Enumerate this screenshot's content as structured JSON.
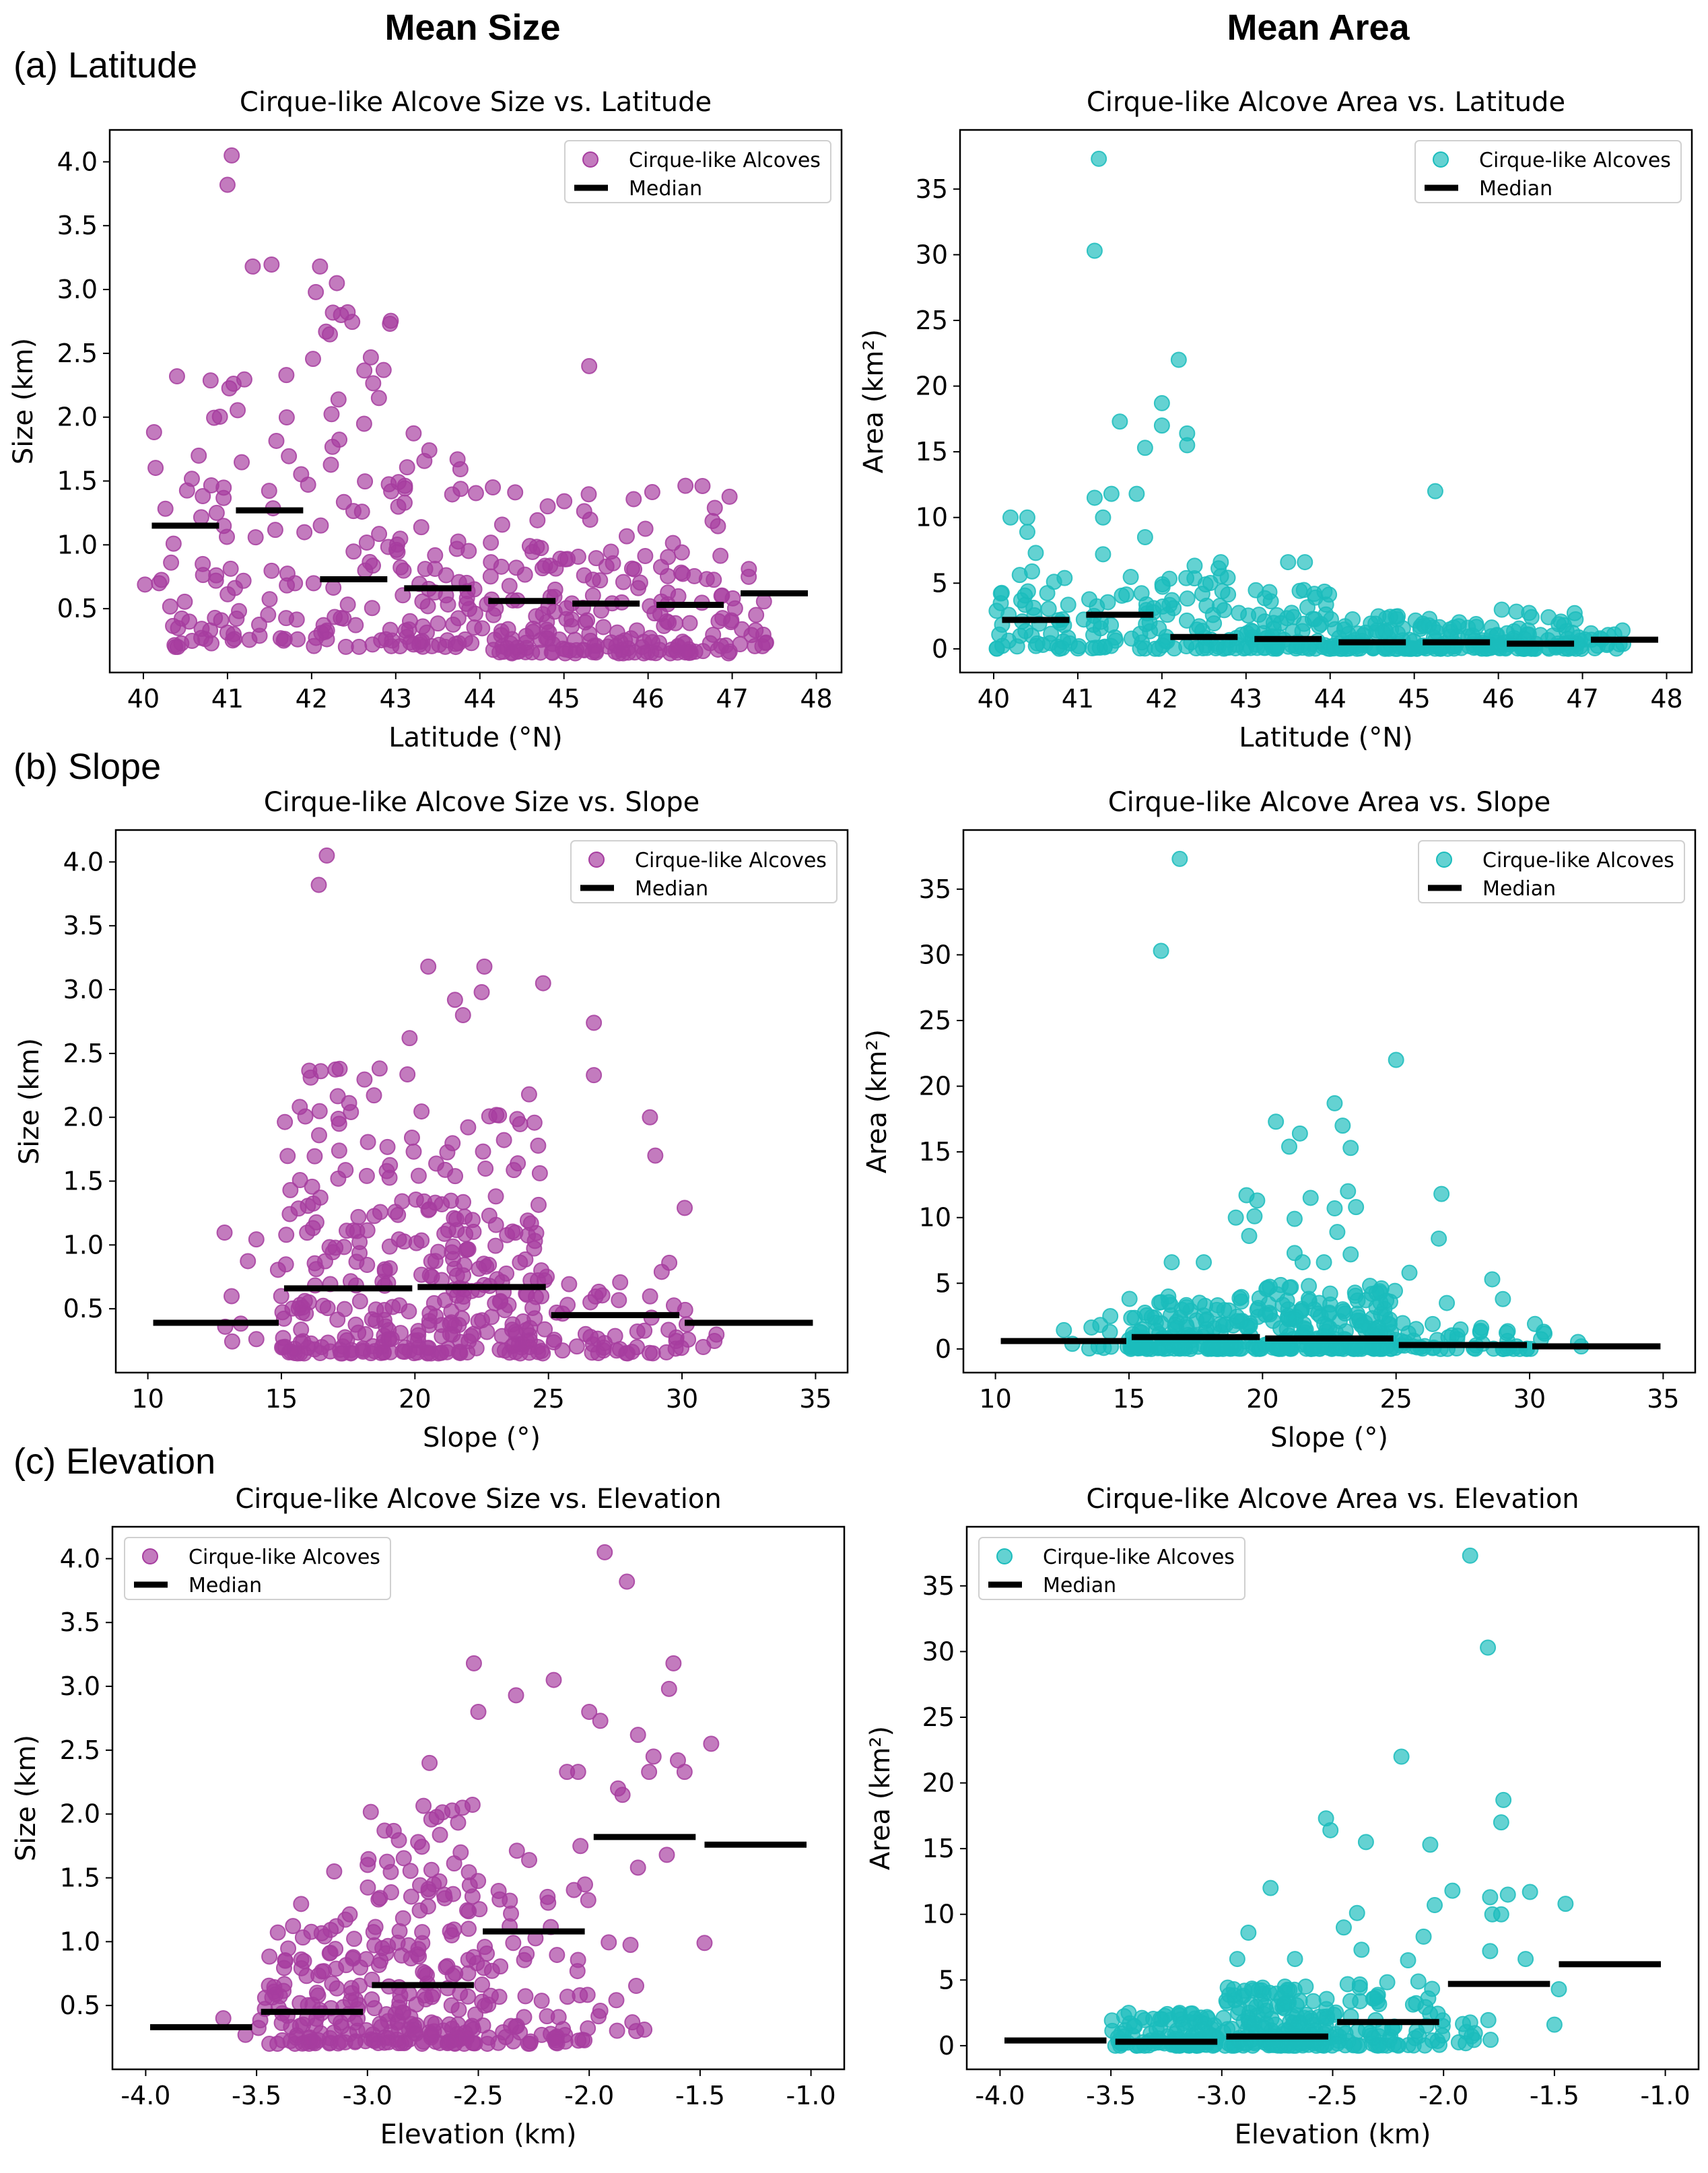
{
  "column_titles": [
    "Mean Size",
    "Mean Area"
  ],
  "row_labels": [
    "(a) Latitude",
    "(b) Slope",
    "(c) Elevation"
  ],
  "colors": {
    "size": "#a63d9f",
    "area": "#1bbcbc",
    "median": "#000000"
  },
  "legend": {
    "points": "Cirque-like Alcoves",
    "median": "Median"
  },
  "chart_data": [
    {
      "id": "size-lat",
      "type": "scatter",
      "title": "Cirque-like Alcove Size vs. Latitude",
      "xlabel": "Latitude (°N)",
      "ylabel": "Size (km)",
      "xlim": [
        39.6,
        48.3
      ],
      "ylim": [
        0.0,
        4.25
      ],
      "xticks": [
        40,
        41,
        42,
        43,
        44,
        45,
        46,
        47,
        48
      ],
      "xtick_labels": [
        "40",
        "41",
        "42",
        "43",
        "44",
        "45",
        "46",
        "47",
        "48"
      ],
      "yticks": [
        0.5,
        1.0,
        1.5,
        2.0,
        2.5,
        3.0,
        3.5,
        4.0
      ],
      "ytick_labels": [
        "0.5",
        "1.0",
        "1.5",
        "2.0",
        "2.5",
        "3.0",
        "3.5",
        "4.0"
      ],
      "legend_position": "top-right",
      "color_key": "size",
      "medians": [
        [
          40.1,
          40.9,
          1.15
        ],
        [
          41.1,
          41.9,
          1.27
        ],
        [
          42.1,
          42.9,
          0.73
        ],
        [
          43.1,
          43.9,
          0.66
        ],
        [
          44.1,
          44.9,
          0.56
        ],
        [
          45.1,
          45.9,
          0.54
        ],
        [
          46.1,
          46.9,
          0.53
        ],
        [
          47.1,
          47.9,
          0.62
        ]
      ],
      "clusters": [
        [
          40.0,
          41.0,
          0.2,
          2.3,
          45,
          1
        ],
        [
          41.0,
          42.0,
          0.25,
          3.2,
          40,
          2
        ],
        [
          42.0,
          43.0,
          0.2,
          3.05,
          55,
          3
        ],
        [
          43.0,
          44.0,
          0.2,
          1.9,
          70,
          4
        ],
        [
          44.0,
          45.0,
          0.15,
          1.5,
          70,
          5
        ],
        [
          45.0,
          46.0,
          0.15,
          1.4,
          70,
          6
        ],
        [
          46.0,
          47.0,
          0.15,
          1.6,
          65,
          7
        ],
        [
          47.0,
          47.5,
          0.2,
          0.95,
          15,
          8
        ]
      ],
      "outliers": [
        [
          41.05,
          4.05
        ],
        [
          41.0,
          3.82
        ],
        [
          41.3,
          3.18
        ],
        [
          42.1,
          3.18
        ],
        [
          42.3,
          3.05
        ],
        [
          42.35,
          2.8
        ],
        [
          42.05,
          2.98
        ],
        [
          45.3,
          2.4
        ],
        [
          40.4,
          2.32
        ],
        [
          41.7,
          2.33
        ],
        [
          42.8,
          2.15
        ]
      ]
    },
    {
      "id": "area-lat",
      "type": "scatter",
      "title": "Cirque-like Alcove Area vs. Latitude",
      "xlabel": "Latitude (°N)",
      "ylabel": "Area (km²)",
      "xlim": [
        39.6,
        48.3
      ],
      "ylim": [
        -1.8,
        39.5
      ],
      "xticks": [
        40,
        41,
        42,
        43,
        44,
        45,
        46,
        47,
        48
      ],
      "xtick_labels": [
        "40",
        "41",
        "42",
        "43",
        "44",
        "45",
        "46",
        "47",
        "48"
      ],
      "yticks": [
        0,
        5,
        10,
        15,
        20,
        25,
        30,
        35
      ],
      "ytick_labels": [
        "0",
        "5",
        "10",
        "15",
        "20",
        "25",
        "30",
        "35"
      ],
      "legend_position": "top-right",
      "color_key": "area",
      "medians": [
        [
          40.1,
          40.9,
          2.2
        ],
        [
          41.1,
          41.9,
          2.6
        ],
        [
          42.1,
          42.9,
          0.9
        ],
        [
          43.1,
          43.9,
          0.75
        ],
        [
          44.1,
          44.9,
          0.5
        ],
        [
          45.1,
          45.9,
          0.5
        ],
        [
          46.1,
          46.9,
          0.4
        ],
        [
          47.1,
          47.9,
          0.7
        ]
      ],
      "clusters": [
        [
          40.0,
          41.0,
          0,
          6,
          45,
          11
        ],
        [
          41.0,
          42.0,
          0,
          5.5,
          40,
          12
        ],
        [
          42.0,
          43.0,
          0,
          6.5,
          55,
          13
        ],
        [
          43.0,
          44.0,
          0,
          4.5,
          70,
          14
        ],
        [
          44.0,
          45.0,
          0,
          2.5,
          70,
          15
        ],
        [
          45.0,
          46.0,
          0,
          2.5,
          70,
          16
        ],
        [
          46.0,
          47.0,
          0,
          3,
          65,
          17
        ],
        [
          47.0,
          47.5,
          0,
          1.5,
          15,
          18
        ]
      ],
      "outliers": [
        [
          41.25,
          37.3
        ],
        [
          41.2,
          30.3
        ],
        [
          42.2,
          22.0
        ],
        [
          42.0,
          18.7
        ],
        [
          41.5,
          17.3
        ],
        [
          42.0,
          17.0
        ],
        [
          42.3,
          16.4
        ],
        [
          42.3,
          15.5
        ],
        [
          41.8,
          15.3
        ],
        [
          41.2,
          11.5
        ],
        [
          41.4,
          11.8
        ],
        [
          41.7,
          11.8
        ],
        [
          40.4,
          10.0
        ],
        [
          40.2,
          10.0
        ],
        [
          40.4,
          8.9
        ],
        [
          41.3,
          10.0
        ],
        [
          41.8,
          8.5
        ],
        [
          45.25,
          12.0
        ],
        [
          43.5,
          6.6
        ],
        [
          43.7,
          6.6
        ],
        [
          42.7,
          6.6
        ],
        [
          40.5,
          7.3
        ],
        [
          41.3,
          7.2
        ]
      ]
    },
    {
      "id": "size-slope",
      "type": "scatter",
      "title": "Cirque-like Alcove Size vs. Slope",
      "xlabel": "Slope (°)",
      "ylabel": "Size (km)",
      "xlim": [
        8.8,
        36.2
      ],
      "ylim": [
        0.0,
        4.25
      ],
      "xticks": [
        10,
        15,
        20,
        25,
        30,
        35
      ],
      "xtick_labels": [
        "10",
        "15",
        "20",
        "25",
        "30",
        "35"
      ],
      "yticks": [
        0.5,
        1.0,
        1.5,
        2.0,
        2.5,
        3.0,
        3.5,
        4.0
      ],
      "ytick_labels": [
        "0.5",
        "1.0",
        "1.5",
        "2.0",
        "2.5",
        "3.0",
        "3.5",
        "4.0"
      ],
      "legend_position": "top-right",
      "color_key": "size",
      "medians": [
        [
          10.2,
          14.9,
          0.39
        ],
        [
          15.1,
          19.9,
          0.66
        ],
        [
          20.1,
          24.9,
          0.67
        ],
        [
          25.1,
          29.9,
          0.45
        ],
        [
          30.1,
          34.9,
          0.39
        ]
      ],
      "clusters": [
        [
          12.5,
          15.0,
          0.2,
          1.1,
          10,
          21
        ],
        [
          15.0,
          20.0,
          0.15,
          2.4,
          160,
          22
        ],
        [
          20.0,
          25.0,
          0.15,
          2.2,
          180,
          23
        ],
        [
          25.0,
          30.0,
          0.15,
          0.9,
          45,
          24
        ],
        [
          30.0,
          32.0,
          0.2,
          0.5,
          6,
          25
        ]
      ],
      "outliers": [
        [
          16.7,
          4.05
        ],
        [
          16.4,
          3.82
        ],
        [
          20.5,
          3.18
        ],
        [
          22.6,
          3.18
        ],
        [
          24.8,
          3.05
        ],
        [
          21.5,
          2.92
        ],
        [
          22.5,
          2.98
        ],
        [
          21.8,
          2.8
        ],
        [
          26.7,
          2.74
        ],
        [
          19.8,
          2.62
        ],
        [
          30.1,
          1.29
        ],
        [
          28.8,
          2.0
        ],
        [
          29.0,
          1.7
        ],
        [
          26.7,
          2.33
        ]
      ]
    },
    {
      "id": "area-slope",
      "type": "scatter",
      "title": "Cirque-like Alcove Area vs. Slope",
      "xlabel": "Slope (°)",
      "ylabel": "Area (km²)",
      "xlim": [
        8.8,
        36.2
      ],
      "ylim": [
        -1.8,
        39.5
      ],
      "xticks": [
        10,
        15,
        20,
        25,
        30,
        35
      ],
      "xtick_labels": [
        "10",
        "15",
        "20",
        "25",
        "30",
        "35"
      ],
      "yticks": [
        0,
        5,
        10,
        15,
        20,
        25,
        30,
        35
      ],
      "ytick_labels": [
        "0",
        "5",
        "10",
        "15",
        "20",
        "25",
        "30",
        "35"
      ],
      "legend_position": "top-right",
      "color_key": "area",
      "medians": [
        [
          10.2,
          14.9,
          0.6
        ],
        [
          15.1,
          19.9,
          0.9
        ],
        [
          20.1,
          24.9,
          0.8
        ],
        [
          25.1,
          29.9,
          0.3
        ],
        [
          30.1,
          34.9,
          0.2
        ]
      ],
      "clusters": [
        [
          12.5,
          15.0,
          0,
          2.5,
          10,
          31
        ],
        [
          15.0,
          20.0,
          0,
          4,
          160,
          32
        ],
        [
          20.0,
          25.0,
          0,
          5,
          180,
          33
        ],
        [
          25.0,
          30.0,
          0,
          2,
          45,
          34
        ],
        [
          30.0,
          32.0,
          0,
          1.5,
          6,
          35
        ]
      ],
      "outliers": [
        [
          16.9,
          37.3
        ],
        [
          16.2,
          30.3
        ],
        [
          25.0,
          22.0
        ],
        [
          22.7,
          18.7
        ],
        [
          20.5,
          17.3
        ],
        [
          23.0,
          17.0
        ],
        [
          21.4,
          16.4
        ],
        [
          21.0,
          15.4
        ],
        [
          23.3,
          15.3
        ],
        [
          19.4,
          11.7
        ],
        [
          19.8,
          11.3
        ],
        [
          21.8,
          11.5
        ],
        [
          23.2,
          12.0
        ],
        [
          26.7,
          11.8
        ],
        [
          19.0,
          10.0
        ],
        [
          19.7,
          10.1
        ],
        [
          21.2,
          9.9
        ],
        [
          22.7,
          10.7
        ],
        [
          23.5,
          10.8
        ],
        [
          22.8,
          8.9
        ],
        [
          19.5,
          8.6
        ],
        [
          26.6,
          8.4
        ],
        [
          21.2,
          7.3
        ],
        [
          23.3,
          7.2
        ],
        [
          16.6,
          6.6
        ],
        [
          17.8,
          6.6
        ],
        [
          22.3,
          6.6
        ],
        [
          21.5,
          6.6
        ],
        [
          28.6,
          5.3
        ],
        [
          29.0,
          3.8
        ],
        [
          25.5,
          5.8
        ],
        [
          26.9,
          3.5
        ],
        [
          30.2,
          1.9
        ],
        [
          14.3,
          2.5
        ]
      ]
    },
    {
      "id": "size-elev",
      "type": "scatter",
      "title": "Cirque-like Alcove Size vs. Elevation",
      "xlabel": "Elevation (km)",
      "ylabel": "Size (km)",
      "xlim": [
        -4.15,
        -0.85
      ],
      "ylim": [
        0.0,
        4.25
      ],
      "xticks": [
        -4.0,
        -3.5,
        -3.0,
        -2.5,
        -2.0,
        -1.5,
        -1.0
      ],
      "xtick_labels": [
        "-4.0",
        "-3.5",
        "-3.0",
        "-2.5",
        "-2.0",
        "-1.5",
        "-1.0"
      ],
      "yticks": [
        0.5,
        1.0,
        1.5,
        2.0,
        2.5,
        3.0,
        3.5,
        4.0
      ],
      "ytick_labels": [
        "0.5",
        "1.0",
        "1.5",
        "2.0",
        "2.5",
        "3.0",
        "3.5",
        "4.0"
      ],
      "legend_position": "top-left",
      "color_key": "size",
      "medians": [
        [
          -3.98,
          -3.52,
          0.33
        ],
        [
          -3.48,
          -3.02,
          0.45
        ],
        [
          -2.98,
          -2.52,
          0.66
        ],
        [
          -2.48,
          -2.02,
          1.08
        ],
        [
          -1.98,
          -1.52,
          1.82
        ],
        [
          -1.48,
          -1.02,
          1.76
        ]
      ],
      "clusters": [
        [
          -3.5,
          -3.0,
          0.2,
          1.3,
          110,
          41
        ],
        [
          -3.0,
          -2.5,
          0.2,
          2.1,
          170,
          42
        ],
        [
          -2.5,
          -2.0,
          0.2,
          1.9,
          70,
          43
        ],
        [
          -2.0,
          -1.75,
          0.3,
          1.2,
          10,
          44
        ]
      ],
      "outliers": [
        [
          -3.65,
          0.4
        ],
        [
          -3.55,
          0.27
        ],
        [
          -1.93,
          4.05
        ],
        [
          -1.83,
          3.82
        ],
        [
          -2.52,
          3.18
        ],
        [
          -1.62,
          3.18
        ],
        [
          -2.16,
          3.05
        ],
        [
          -1.64,
          2.98
        ],
        [
          -2.33,
          2.93
        ],
        [
          -2.5,
          2.8
        ],
        [
          -2.0,
          2.8
        ],
        [
          -1.95,
          2.73
        ],
        [
          -1.78,
          2.62
        ],
        [
          -1.45,
          2.55
        ],
        [
          -1.71,
          2.45
        ],
        [
          -1.6,
          2.42
        ],
        [
          -1.73,
          2.33
        ],
        [
          -1.57,
          2.33
        ],
        [
          -2.1,
          2.33
        ],
        [
          -2.05,
          2.33
        ],
        [
          -1.85,
          2.15
        ],
        [
          -1.48,
          0.99
        ],
        [
          -1.78,
          1.58
        ],
        [
          -1.65,
          1.68
        ],
        [
          -1.87,
          2.2
        ],
        [
          -2.72,
          2.4
        ],
        [
          -3.15,
          1.55
        ]
      ]
    },
    {
      "id": "area-elev",
      "type": "scatter",
      "title": "Cirque-like Alcove Area vs. Elevation",
      "xlabel": "Elevation (km)",
      "ylabel": "Area (km²)",
      "xlim": [
        -4.15,
        -0.85
      ],
      "ylim": [
        -1.8,
        39.5
      ],
      "xticks": [
        -4.0,
        -3.5,
        -3.0,
        -2.5,
        -2.0,
        -1.5,
        -1.0
      ],
      "xtick_labels": [
        "-4.0",
        "-3.5",
        "-3.0",
        "-2.5",
        "-2.0",
        "-1.5",
        "-1.0"
      ],
      "yticks": [
        0,
        5,
        10,
        15,
        20,
        25,
        30,
        35
      ],
      "ytick_labels": [
        "0",
        "5",
        "10",
        "15",
        "20",
        "25",
        "30",
        "35"
      ],
      "legend_position": "top-left",
      "color_key": "area",
      "medians": [
        [
          -3.98,
          -3.52,
          0.4
        ],
        [
          -3.48,
          -3.02,
          0.3
        ],
        [
          -2.98,
          -2.52,
          0.7
        ],
        [
          -2.48,
          -2.02,
          1.8
        ],
        [
          -1.98,
          -1.52,
          4.7
        ],
        [
          -1.48,
          -1.02,
          6.2
        ]
      ],
      "clusters": [
        [
          -3.5,
          -3.0,
          0,
          2.5,
          110,
          51
        ],
        [
          -3.0,
          -2.5,
          0,
          4.5,
          170,
          52
        ],
        [
          -2.5,
          -2.0,
          0,
          5,
          70,
          53
        ],
        [
          -2.0,
          -1.75,
          0,
          2,
          10,
          54
        ]
      ],
      "outliers": [
        [
          -1.88,
          37.3
        ],
        [
          -1.8,
          30.3
        ],
        [
          -2.19,
          22.0
        ],
        [
          -1.73,
          18.7
        ],
        [
          -2.53,
          17.3
        ],
        [
          -2.51,
          16.4
        ],
        [
          -1.74,
          17.0
        ],
        [
          -2.35,
          15.5
        ],
        [
          -2.06,
          15.3
        ],
        [
          -2.78,
          12.0
        ],
        [
          -1.96,
          11.8
        ],
        [
          -1.79,
          11.3
        ],
        [
          -1.71,
          11.5
        ],
        [
          -1.61,
          11.7
        ],
        [
          -1.45,
          10.8
        ],
        [
          -2.04,
          10.7
        ],
        [
          -2.39,
          10.1
        ],
        [
          -1.78,
          10.0
        ],
        [
          -1.74,
          10.0
        ],
        [
          -2.45,
          9.0
        ],
        [
          -2.88,
          8.6
        ],
        [
          -2.09,
          8.3
        ],
        [
          -2.37,
          7.3
        ],
        [
          -1.79,
          7.2
        ],
        [
          -2.93,
          6.6
        ],
        [
          -2.67,
          6.6
        ],
        [
          -2.16,
          6.5
        ],
        [
          -1.63,
          6.6
        ],
        [
          -1.48,
          4.3
        ],
        [
          -1.5,
          1.6
        ],
        [
          -3.42,
          2.5
        ]
      ]
    }
  ]
}
